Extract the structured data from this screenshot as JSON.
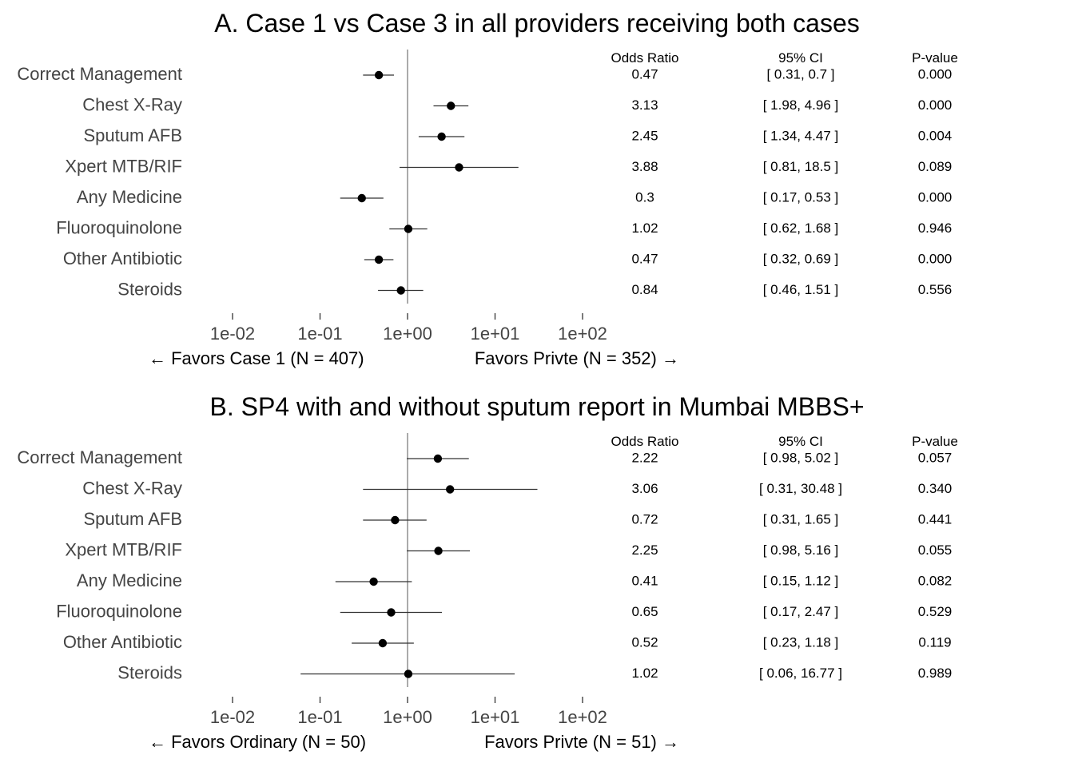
{
  "chart_data": [
    {
      "type": "scatter",
      "title": "A. Case 1 vs Case 3 in all providers receiving both cases",
      "x_scale": "log",
      "xlim": [
        0.01,
        100
      ],
      "x_ticks": [
        "1e-02",
        "1e-01",
        "1e+00",
        "1e+01",
        "1e+02"
      ],
      "reference_line": 1,
      "favor_left": "← Favors Case 1 (N = 407)",
      "favor_right": "Favors Privte (N = 352) →",
      "column_headers": [
        "Odds Ratio",
        "95% CI",
        "P-value"
      ],
      "rows": [
        {
          "label": "Correct Management",
          "or": 0.47,
          "lo": 0.31,
          "hi": 0.7,
          "or_text": "0.47",
          "ci_text": "[ 0.31, 0.7 ]",
          "p_text": "0.000"
        },
        {
          "label": "Chest X-Ray",
          "or": 3.13,
          "lo": 1.98,
          "hi": 4.96,
          "or_text": "3.13",
          "ci_text": "[ 1.98, 4.96 ]",
          "p_text": "0.000"
        },
        {
          "label": "Sputum AFB",
          "or": 2.45,
          "lo": 1.34,
          "hi": 4.47,
          "or_text": "2.45",
          "ci_text": "[ 1.34, 4.47 ]",
          "p_text": "0.004"
        },
        {
          "label": "Xpert MTB/RIF",
          "or": 3.88,
          "lo": 0.81,
          "hi": 18.5,
          "or_text": "3.88",
          "ci_text": "[ 0.81, 18.5 ]",
          "p_text": "0.089"
        },
        {
          "label": "Any Medicine",
          "or": 0.3,
          "lo": 0.17,
          "hi": 0.53,
          "or_text": "0.3",
          "ci_text": "[ 0.17, 0.53 ]",
          "p_text": "0.000"
        },
        {
          "label": "Fluoroquinolone",
          "or": 1.02,
          "lo": 0.62,
          "hi": 1.68,
          "or_text": "1.02",
          "ci_text": "[ 0.62, 1.68 ]",
          "p_text": "0.946"
        },
        {
          "label": "Other Antibiotic",
          "or": 0.47,
          "lo": 0.32,
          "hi": 0.69,
          "or_text": "0.47",
          "ci_text": "[ 0.32, 0.69 ]",
          "p_text": "0.000"
        },
        {
          "label": "Steroids",
          "or": 0.84,
          "lo": 0.46,
          "hi": 1.51,
          "or_text": "0.84",
          "ci_text": "[ 0.46, 1.51 ]",
          "p_text": "0.556"
        }
      ]
    },
    {
      "type": "scatter",
      "title": "B. SP4 with and without sputum report in Mumbai MBBS+",
      "x_scale": "log",
      "xlim": [
        0.01,
        100
      ],
      "x_ticks": [
        "1e-02",
        "1e-01",
        "1e+00",
        "1e+01",
        "1e+02"
      ],
      "reference_line": 1,
      "favor_left": "← Favors Ordinary (N = 50)",
      "favor_right": "Favors Privte (N = 51) →",
      "column_headers": [
        "Odds Ratio",
        "95% CI",
        "P-value"
      ],
      "rows": [
        {
          "label": "Correct Management",
          "or": 2.22,
          "lo": 0.98,
          "hi": 5.02,
          "or_text": "2.22",
          "ci_text": "[ 0.98, 5.02 ]",
          "p_text": "0.057"
        },
        {
          "label": "Chest X-Ray",
          "or": 3.06,
          "lo": 0.31,
          "hi": 30.48,
          "or_text": "3.06",
          "ci_text": "[ 0.31, 30.48 ]",
          "p_text": "0.340"
        },
        {
          "label": "Sputum AFB",
          "or": 0.72,
          "lo": 0.31,
          "hi": 1.65,
          "or_text": "0.72",
          "ci_text": "[ 0.31, 1.65 ]",
          "p_text": "0.441"
        },
        {
          "label": "Xpert MTB/RIF",
          "or": 2.25,
          "lo": 0.98,
          "hi": 5.16,
          "or_text": "2.25",
          "ci_text": "[ 0.98, 5.16 ]",
          "p_text": "0.055"
        },
        {
          "label": "Any Medicine",
          "or": 0.41,
          "lo": 0.15,
          "hi": 1.12,
          "or_text": "0.41",
          "ci_text": "[ 0.15, 1.12 ]",
          "p_text": "0.082"
        },
        {
          "label": "Fluoroquinolone",
          "or": 0.65,
          "lo": 0.17,
          "hi": 2.47,
          "or_text": "0.65",
          "ci_text": "[ 0.17, 2.47 ]",
          "p_text": "0.529"
        },
        {
          "label": "Other Antibiotic",
          "or": 0.52,
          "lo": 0.23,
          "hi": 1.18,
          "or_text": "0.52",
          "ci_text": "[ 0.23, 1.18 ]",
          "p_text": "0.119"
        },
        {
          "label": "Steroids",
          "or": 1.02,
          "lo": 0.06,
          "hi": 16.77,
          "or_text": "1.02",
          "ci_text": "[ 0.06, 16.77 ]",
          "p_text": "0.989"
        }
      ]
    }
  ]
}
